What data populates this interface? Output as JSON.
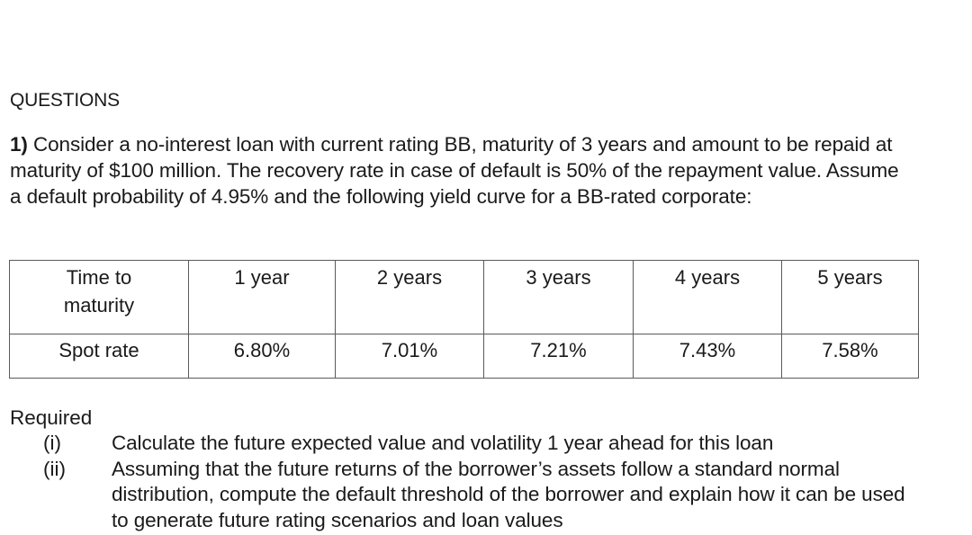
{
  "section_heading": "QUESTIONS",
  "question1": {
    "number": "1)",
    "text": " Consider a no-interest loan with current rating BB, maturity of 3 years and amount to be repaid at maturity of $100 million. The recovery rate in case of default is 50% of the repayment value. Assume a default probability of 4.95% and the following yield curve for a BB-rated corporate:"
  },
  "table": {
    "header_row": {
      "label_line1": "Time to",
      "label_line2": "maturity",
      "cells": [
        "1 year",
        "2 years",
        "3 years",
        "4 years",
        "5 years"
      ]
    },
    "spot_row": {
      "label": "Spot rate",
      "cells": [
        "6.80%",
        "7.01%",
        "7.21%",
        "7.43%",
        "7.58%"
      ]
    }
  },
  "required": {
    "title": "Required",
    "items": [
      {
        "marker": "(i)",
        "text": "Calculate the future expected value and volatility 1 year ahead for this loan"
      },
      {
        "marker": "(ii)",
        "text": "Assuming that the future returns of the borrower’s assets follow a standard normal distribution, compute the default threshold of the borrower and explain how it can be used to generate future rating scenarios and loan values"
      }
    ]
  }
}
